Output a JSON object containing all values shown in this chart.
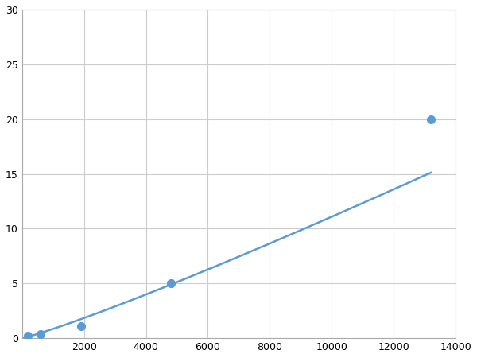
{
  "x_data": [
    200,
    600,
    1900,
    4800,
    13200
  ],
  "y_data": [
    0.2,
    0.4,
    1.1,
    5.0,
    20.0
  ],
  "line_color": "#5b9bd5",
  "marker_color": "#5b9bd5",
  "marker_size": 7,
  "line_width": 1.8,
  "xlim": [
    0,
    14000
  ],
  "ylim": [
    0,
    30
  ],
  "xticks": [
    0,
    2000,
    4000,
    6000,
    8000,
    10000,
    12000,
    14000
  ],
  "yticks": [
    0,
    5,
    10,
    15,
    20,
    25,
    30
  ],
  "grid_color": "#cccccc",
  "background_color": "#ffffff",
  "figure_bg": "#ffffff",
  "tick_labelsize": 9,
  "spine_color": "#aaaaaa"
}
